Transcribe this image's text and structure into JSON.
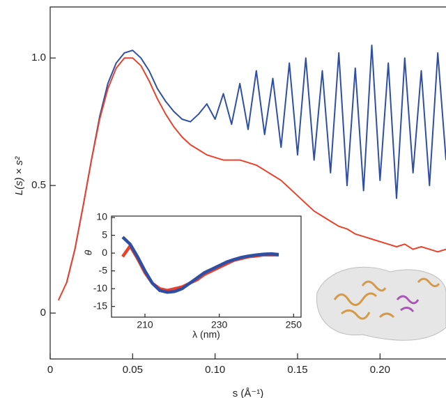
{
  "chart_data": [
    {
      "type": "line",
      "x_label": "s (Å⁻¹)",
      "y_label": "L(s) × s²",
      "xlim": [
        0,
        0.24
      ],
      "ylim": [
        -0.18,
        1.2
      ],
      "xticks": [
        0,
        0.05,
        {
          "value": 0.1,
          "label": "0.10"
        },
        0.15,
        {
          "value": 0.2,
          "label": "0.20"
        }
      ],
      "yticks": [
        0,
        0.5,
        {
          "value": 1,
          "label": "1.0"
        }
      ],
      "series": [
        {
          "color": "#2e4fa3",
          "x": [
            0.01,
            0.015,
            0.02,
            0.025,
            0.03,
            0.035,
            0.04,
            0.045,
            0.05,
            0.055,
            0.06,
            0.065,
            0.07,
            0.075,
            0.08,
            0.085,
            0.09,
            0.095,
            0.1,
            0.105,
            0.11,
            0.115,
            0.12,
            0.125,
            0.13,
            0.135,
            0.14,
            0.145,
            0.15,
            0.155,
            0.16,
            0.165,
            0.17,
            0.175,
            0.18,
            0.185,
            0.19,
            0.195,
            0.2,
            0.205,
            0.21,
            0.215,
            0.22,
            0.225,
            0.23,
            0.235,
            0.24
          ],
          "values": [
            0.12,
            0.25,
            0.42,
            0.6,
            0.77,
            0.9,
            0.98,
            1.02,
            1.03,
            1.0,
            0.95,
            0.88,
            0.83,
            0.79,
            0.76,
            0.75,
            0.78,
            0.82,
            0.76,
            0.86,
            0.74,
            0.9,
            0.72,
            0.95,
            0.7,
            0.92,
            0.65,
            0.98,
            0.62,
            1.0,
            0.6,
            0.95,
            0.55,
            1.02,
            0.5,
            0.96,
            0.48,
            1.05,
            0.52,
            0.98,
            0.45,
            1.0,
            0.55,
            0.95,
            0.5,
            1.02,
            0.6
          ]
        },
        {
          "color": "#e8412c",
          "x": [
            0.005,
            0.01,
            0.015,
            0.02,
            0.025,
            0.03,
            0.035,
            0.04,
            0.045,
            0.05,
            0.055,
            0.06,
            0.065,
            0.07,
            0.075,
            0.08,
            0.085,
            0.09,
            0.095,
            0.1,
            0.105,
            0.11,
            0.115,
            0.12,
            0.125,
            0.13,
            0.135,
            0.14,
            0.145,
            0.15,
            0.155,
            0.16,
            0.165,
            0.17,
            0.175,
            0.18,
            0.185,
            0.19,
            0.195,
            0.2,
            0.205,
            0.21,
            0.215,
            0.22,
            0.225,
            0.23,
            0.235,
            0.24
          ],
          "values": [
            0.05,
            0.12,
            0.25,
            0.42,
            0.6,
            0.76,
            0.88,
            0.96,
            1.0,
            1.0,
            0.97,
            0.91,
            0.84,
            0.78,
            0.73,
            0.69,
            0.66,
            0.64,
            0.62,
            0.61,
            0.6,
            0.6,
            0.6,
            0.59,
            0.58,
            0.56,
            0.54,
            0.52,
            0.49,
            0.46,
            0.43,
            0.4,
            0.38,
            0.36,
            0.34,
            0.33,
            0.31,
            0.3,
            0.29,
            0.28,
            0.27,
            0.26,
            0.27,
            0.25,
            0.26,
            0.25,
            0.24,
            0.25
          ]
        }
      ]
    },
    {
      "type": "line",
      "x_label": "λ (nm)",
      "y_label": "θ",
      "xlim": [
        201,
        252
      ],
      "ylim": [
        -18,
        10.4
      ],
      "xticks": [
        210,
        230,
        250
      ],
      "yticks": [
        10,
        5,
        0,
        -5,
        -10,
        -15
      ],
      "series": [
        {
          "color": "#e8412c",
          "x": [
            204,
            206,
            208,
            210,
            212,
            214,
            216,
            218,
            220,
            222,
            224,
            226,
            228,
            230,
            232,
            234,
            236,
            238,
            240,
            242,
            244,
            246
          ],
          "values": [
            -1,
            2,
            -1.5,
            -5.5,
            -8.5,
            -10,
            -10.5,
            -10,
            -9.5,
            -8.5,
            -7.5,
            -6,
            -5,
            -4,
            -3,
            -2,
            -1.5,
            -1,
            -0.8,
            -0.5,
            -0.5,
            -0.5
          ]
        },
        {
          "color": "#2e4fa3",
          "x": [
            204,
            206,
            208,
            210,
            212,
            214,
            216,
            218,
            220,
            222,
            224,
            226,
            228,
            230,
            232,
            234,
            236,
            238,
            240,
            242,
            244,
            246
          ],
          "values": [
            4.5,
            2.5,
            -1,
            -5,
            -8.5,
            -10.5,
            -11,
            -10.8,
            -10,
            -8.5,
            -7,
            -5.5,
            -4.5,
            -3.5,
            -2.5,
            -1.8,
            -1.2,
            -0.8,
            -0.5,
            -0.3,
            -0.2,
            -0.4
          ]
        }
      ]
    }
  ]
}
